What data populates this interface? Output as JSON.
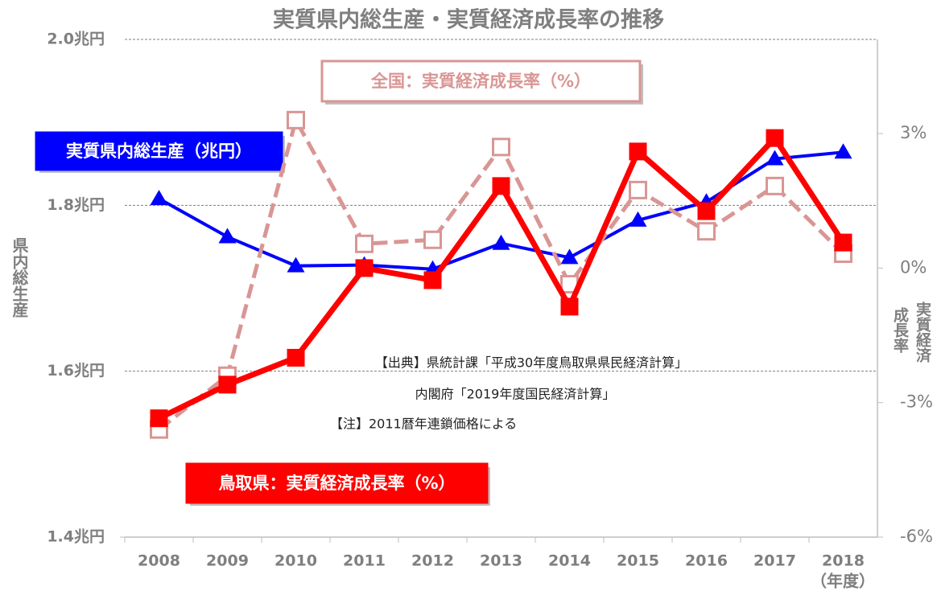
{
  "chart_data": {
    "type": "line",
    "title": "実質県内総生産・実質経済成長率の推移",
    "ylabel": "県内総生産",
    "y2label": [
      "実質経済",
      "成長率"
    ],
    "xlabel": "（年度）",
    "categories": [
      "2008",
      "2009",
      "2010",
      "2011",
      "2012",
      "2013",
      "2014",
      "2015",
      "2016",
      "2017",
      "2018"
    ],
    "ylim": [
      1.4,
      2.0
    ],
    "yticks": [
      {
        "value": 1.4,
        "label": "1.4兆円"
      },
      {
        "value": 1.6,
        "label": "1.6兆円"
      },
      {
        "value": 1.8,
        "label": "1.8兆円"
      },
      {
        "value": 2.0,
        "label": "2.0兆円"
      }
    ],
    "y2lim": [
      -6,
      5.1
    ],
    "y2ticks": [
      {
        "value": -6,
        "label": "-6%"
      },
      {
        "value": -3,
        "label": "-3%"
      },
      {
        "value": 0,
        "label": "0%"
      },
      {
        "value": 3,
        "label": "3%"
      }
    ],
    "grid": true,
    "series": [
      {
        "name": "実質県内総生産（兆円）",
        "color": "#0000ff",
        "marker": "triangle",
        "axis": "y",
        "values": [
          1.808,
          1.762,
          1.727,
          1.728,
          1.723,
          1.754,
          1.737,
          1.782,
          1.804,
          1.856,
          1.864
        ]
      },
      {
        "name": "全国：実質経済成長率（%）",
        "color": "#d99694",
        "marker": "hollow-square",
        "dash": true,
        "axis": "y2",
        "values": [
          -3.6,
          -2.4,
          3.3,
          0.54,
          0.63,
          2.7,
          -0.36,
          1.74,
          0.82,
          1.83,
          0.32
        ]
      },
      {
        "name": "鳥取県：実質経済成長率（%）",
        "color": "#ff0000",
        "marker": "square",
        "axis": "y2",
        "values": [
          -3.35,
          -2.6,
          -2.0,
          0.0,
          -0.27,
          1.83,
          -0.86,
          2.6,
          1.27,
          2.9,
          0.57
        ]
      }
    ],
    "annotations": [
      "【出典】県統計課「平成30年度鳥取県県民経済計算」",
      "内閣府「2019年度国民経済計算」",
      "【注】2011暦年連鎖価格による"
    ]
  }
}
